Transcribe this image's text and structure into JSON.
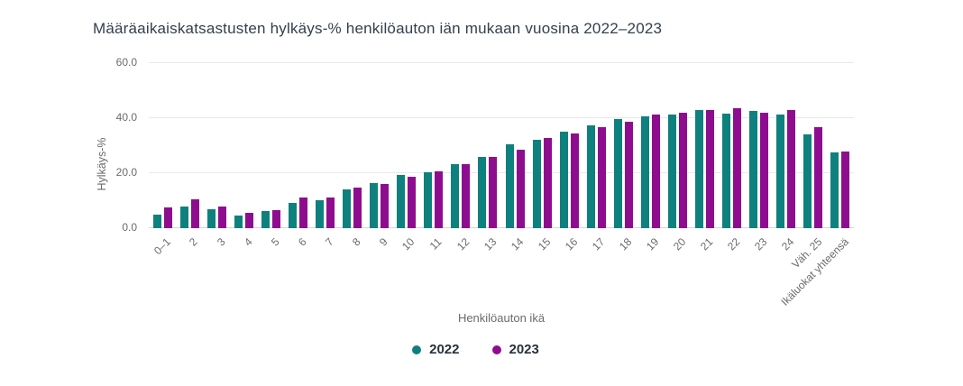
{
  "title": "Määräaikaiskatsastusten hylkäys-% henkilöauton iän mukaan vuosina 2022–2023",
  "chart_data": {
    "type": "bar",
    "title": "Määräaikaiskatsastusten hylkäys-% henkilöauton iän mukaan vuosina 2022–2023",
    "xlabel": "Henkilöauton ikä",
    "ylabel": "Hylkäys-%",
    "ylim": [
      0,
      60
    ],
    "yticks": [
      {
        "value": 0,
        "label": "0.0"
      },
      {
        "value": 20,
        "label": "20.0"
      },
      {
        "value": 40,
        "label": "40.0"
      },
      {
        "value": 60,
        "label": "60.0"
      }
    ],
    "grid": true,
    "legend_position": "bottom-center",
    "categories": [
      "0–1",
      "2",
      "3",
      "4",
      "5",
      "6",
      "7",
      "8",
      "9",
      "10",
      "11",
      "12",
      "13",
      "14",
      "15",
      "16",
      "17",
      "18",
      "19",
      "20",
      "21",
      "22",
      "23",
      "24",
      "Väh. 25",
      "Ikäluokat yhteensä"
    ],
    "series": [
      {
        "name": "2022",
        "color": "#0E817E",
        "values": [
          5.0,
          8.0,
          6.8,
          4.7,
          6.3,
          9.3,
          10.2,
          14.0,
          16.3,
          19.4,
          20.4,
          23.3,
          25.8,
          30.4,
          32.2,
          35.2,
          37.4,
          39.6,
          40.8,
          41.2,
          42.8,
          41.8,
          42.5,
          41.4,
          34.2,
          27.4
        ]
      },
      {
        "name": "2023",
        "color": "#8E0D8F",
        "values": [
          7.4,
          10.5,
          8.0,
          5.7,
          6.7,
          11.2,
          11.2,
          14.6,
          16.0,
          18.6,
          20.5,
          23.4,
          26.0,
          28.4,
          32.7,
          34.3,
          36.7,
          38.8,
          41.2,
          41.9,
          42.9,
          43.6,
          42.1,
          43.1,
          36.8,
          28.0
        ]
      }
    ]
  }
}
